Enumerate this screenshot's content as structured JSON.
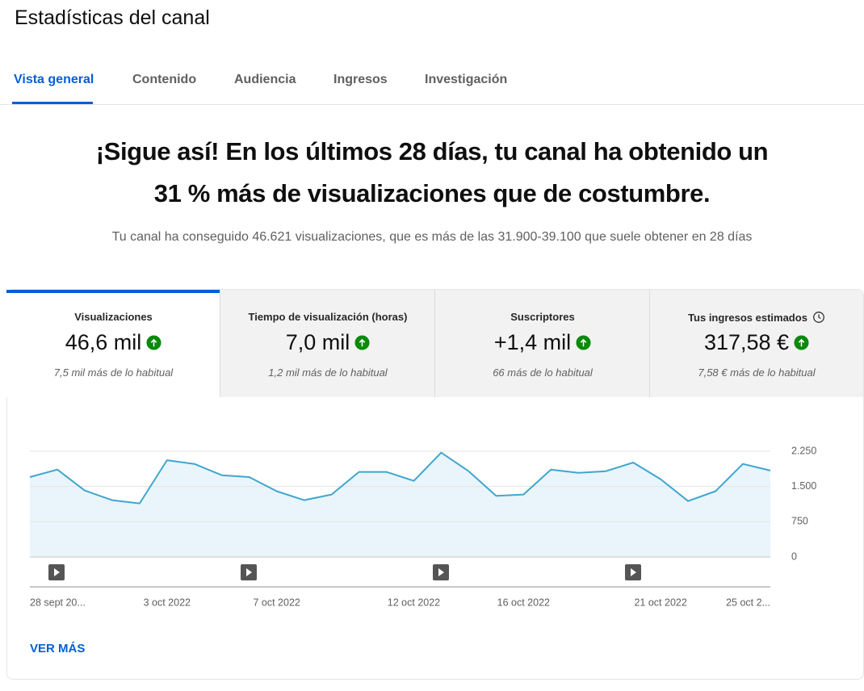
{
  "header": {
    "title": "Estadísticas del canal"
  },
  "tabs": [
    "Vista general",
    "Contenido",
    "Audiencia",
    "Ingresos",
    "Investigación"
  ],
  "headline": {
    "lines": [
      "¡Sigue así! En los últimos 28 días, tu canal ha obtenido un",
      "31 % más de visualizaciones que de costumbre."
    ],
    "subtitle": "Tu canal ha conseguido 46.621 visualizaciones, que es más de las 31.900-39.100 que suele obtener en 28 días"
  },
  "cards": [
    {
      "label": "Visualizaciones",
      "value": "46,6 mil",
      "note": "7,5 mil más de lo habitual"
    },
    {
      "label": "Tiempo de visualización (horas)",
      "value": "7,0 mil",
      "note": "1,2 mil más de lo habitual"
    },
    {
      "label": "Suscriptores",
      "value": "+1,4 mil",
      "note": "66 más de lo habitual"
    },
    {
      "label": "Tus ingresos estimados",
      "value": "317,58 €",
      "note": "7,58 € más de lo habitual"
    }
  ],
  "chart_data": {
    "type": "line",
    "color": "#3fa6cf",
    "area_color": "#e9f5fb",
    "grid": true,
    "categories": [
      "28 sept 20...",
      null,
      null,
      null,
      null,
      "3 oct 2022",
      null,
      null,
      null,
      "7 oct 2022",
      null,
      null,
      null,
      null,
      "12 oct 2022",
      null,
      null,
      null,
      "16 oct 2022",
      null,
      null,
      null,
      null,
      "21 oct 2022",
      null,
      null,
      null,
      "25 oct 2..."
    ],
    "values": [
      1700,
      1860,
      1415,
      1210,
      1140,
      2060,
      1980,
      1740,
      1700,
      1400,
      1210,
      1330,
      1810,
      1810,
      1620,
      2220,
      1825,
      1300,
      1330,
      1860,
      1790,
      1825,
      2010,
      1655,
      1190,
      1400,
      1980,
      1840
    ],
    "ylim": [
      0,
      2250
    ],
    "yticks": [
      0,
      750,
      {
        "value": 1500,
        "label": "1.500"
      },
      {
        "value": 2250,
        "label": "2.250"
      }
    ]
  },
  "link": "VER MÁS"
}
